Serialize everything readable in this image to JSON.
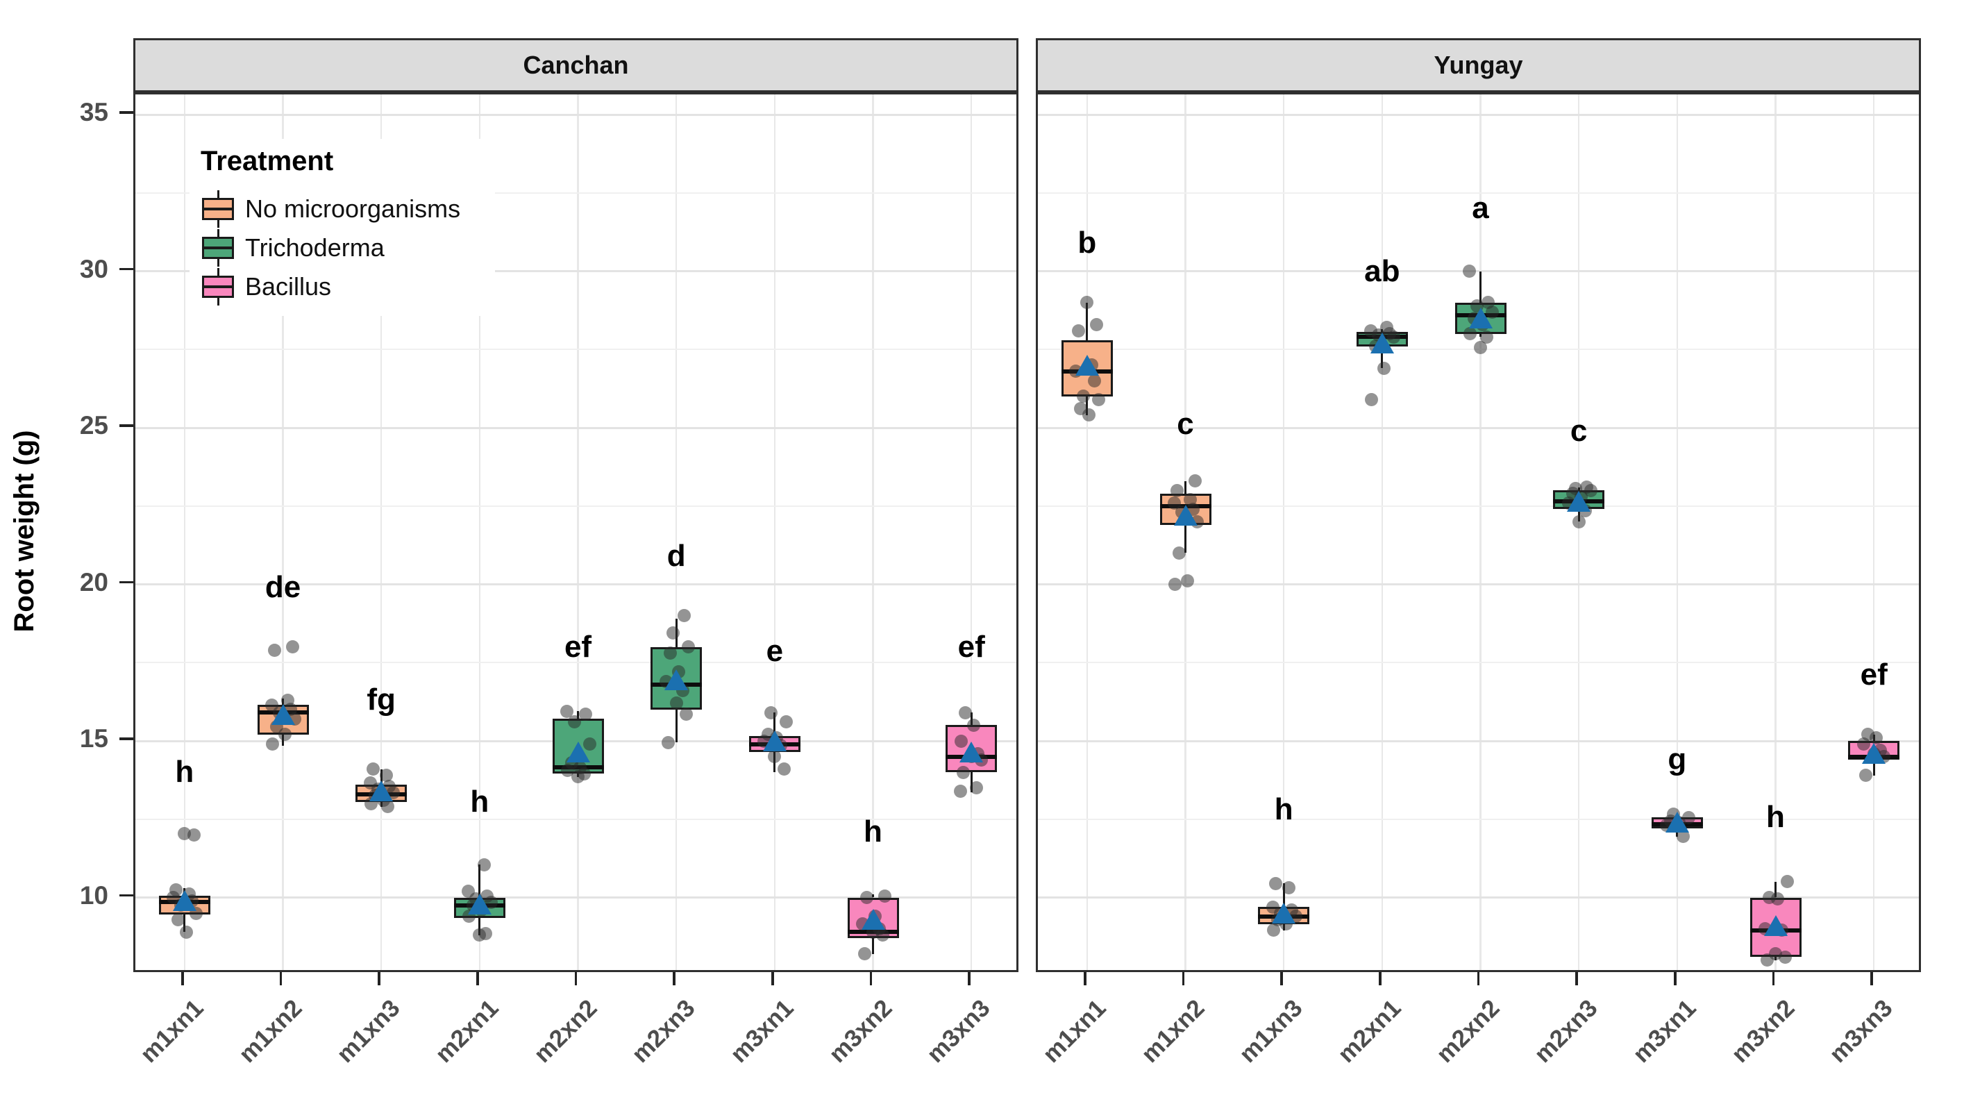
{
  "figure": {
    "y_axis": {
      "label": "Root weight (g)",
      "tick_labels": [
        "35",
        "30",
        "25",
        "20",
        "15",
        "10"
      ],
      "tick_values": [
        35,
        30,
        25,
        20,
        15,
        10
      ],
      "minor_values": [
        32.5,
        27.5,
        22.5,
        17.5,
        12.5
      ],
      "value_top": 35.64,
      "value_bottom": 7.55
    },
    "x_axis": {
      "categories": [
        "m1xn1",
        "m1xn2",
        "m1xn3",
        "m2xn1",
        "m2xn2",
        "m2xn3",
        "m3xn1",
        "m3xn2",
        "m3xn3"
      ]
    },
    "facets": [
      "Canchan",
      "Yungay"
    ],
    "legend": {
      "title": "Treatment",
      "items": [
        {
          "label": "No microorganisms",
          "color": "#F7B189"
        },
        {
          "label": "Trichoderma",
          "color": "#4DA679"
        },
        {
          "label": "Bacillus",
          "color": "#F987BD"
        }
      ]
    }
  },
  "colors": {
    "treatment_fills": {
      "No microorganisms": "#F7B189",
      "Trichoderma": "#4DA679",
      "Bacillus": "#F987BD"
    },
    "mean_marker": "#1B70B0",
    "jitter_point": "rgba(42,42,42,0.5)",
    "box_stroke": "#1a1a1a",
    "strip_fill": "#DCDCDC",
    "panel_border": "#2F2F2F",
    "gridline_major": "#E3E3E3",
    "gridline_minor": "#F0F0F0",
    "axis_text": "#4D4D4D"
  },
  "chart_data": {
    "type": "boxplot",
    "title": "",
    "xlabel": "",
    "ylabel": "Root weight (g)",
    "ylim": [
      7.55,
      35.64
    ],
    "grid": true,
    "legend_position": "top-left-inside",
    "facets": [
      {
        "name": "Canchan",
        "groups": [
          {
            "category": "m1xn1",
            "treatment": "No microorganisms",
            "letter": "h",
            "letter_y": 14.0,
            "whisker_low": 8.9,
            "q1": 9.45,
            "median": 9.85,
            "q3": 10.05,
            "whisker_high": 10.3,
            "mean": 9.9,
            "points": [
              12.05,
              12.0,
              10.25,
              10.1,
              10.0,
              9.9,
              9.75,
              9.5,
              9.3,
              8.9
            ]
          },
          {
            "category": "m1xn2",
            "treatment": "No microorganisms",
            "letter": "de",
            "letter_y": 19.9,
            "whisker_low": 14.85,
            "q1": 15.2,
            "median": 15.9,
            "q3": 16.15,
            "whisker_high": 16.35,
            "mean": 15.85,
            "points": [
              18.0,
              17.9,
              16.3,
              16.15,
              16.0,
              15.9,
              15.7,
              15.45,
              15.2,
              14.9
            ]
          },
          {
            "category": "m1xn3",
            "treatment": "No microorganisms",
            "letter": "fg",
            "letter_y": 16.3,
            "whisker_low": 12.9,
            "q1": 13.05,
            "median": 13.3,
            "q3": 13.6,
            "whisker_high": 14.1,
            "mean": 13.4,
            "points": [
              14.1,
              13.9,
              13.65,
              13.55,
              13.45,
              13.35,
              13.25,
              13.1,
              13.0,
              12.9
            ]
          },
          {
            "category": "m2xn1",
            "treatment": "Trichoderma",
            "letter": "h",
            "letter_y": 13.05,
            "whisker_low": 8.8,
            "q1": 9.35,
            "median": 9.75,
            "q3": 10.0,
            "whisker_high": 11.05,
            "mean": 9.8,
            "points": [
              11.05,
              10.2,
              10.05,
              9.95,
              9.85,
              9.75,
              9.6,
              9.4,
              8.85,
              8.8
            ]
          },
          {
            "category": "m2xn2",
            "treatment": "Trichoderma",
            "letter": "ef",
            "letter_y": 18.0,
            "whisker_low": 13.85,
            "q1": 13.95,
            "median": 14.15,
            "q3": 15.7,
            "whisker_high": 15.95,
            "mean": 14.65,
            "points": [
              15.95,
              15.85,
              15.6,
              14.9,
              14.3,
              14.15,
              14.05,
              13.95,
              13.85
            ]
          },
          {
            "category": "m2xn3",
            "treatment": "Trichoderma",
            "letter": "d",
            "letter_y": 20.9,
            "whisker_low": 14.95,
            "q1": 16.0,
            "median": 16.8,
            "q3": 18.0,
            "whisker_high": 18.9,
            "mean": 16.95,
            "points": [
              19.0,
              18.45,
              18.0,
              17.8,
              17.2,
              16.9,
              16.6,
              16.2,
              15.85,
              14.95
            ]
          },
          {
            "category": "m3xn1",
            "treatment": "Bacillus",
            "letter": "e",
            "letter_y": 17.85,
            "whisker_low": 14.0,
            "q1": 14.65,
            "median": 14.9,
            "q3": 15.15,
            "whisker_high": 15.9,
            "mean": 15.0,
            "points": [
              15.9,
              15.6,
              15.2,
              15.1,
              15.0,
              14.85,
              14.5,
              14.1
            ]
          },
          {
            "category": "m3xn2",
            "treatment": "Bacillus",
            "letter": "h",
            "letter_y": 12.1,
            "whisker_low": 8.2,
            "q1": 8.7,
            "median": 8.9,
            "q3": 10.0,
            "whisker_high": 10.1,
            "mean": 9.3,
            "points": [
              10.05,
              10.0,
              9.4,
              9.15,
              9.0,
              8.9,
              8.8,
              8.2
            ]
          },
          {
            "category": "m3xn3",
            "treatment": "Bacillus",
            "letter": "ef",
            "letter_y": 18.0,
            "whisker_low": 13.35,
            "q1": 14.0,
            "median": 14.5,
            "q3": 15.5,
            "whisker_high": 15.9,
            "mean": 14.65,
            "points": [
              15.9,
              15.5,
              15.0,
              14.6,
              14.5,
              14.4,
              14.0,
              13.5,
              13.4
            ]
          }
        ]
      },
      {
        "name": "Yungay",
        "groups": [
          {
            "category": "m1xn1",
            "treatment": "No microorganisms",
            "letter": "b",
            "letter_y": 30.9,
            "whisker_low": 25.4,
            "q1": 26.0,
            "median": 26.8,
            "q3": 27.8,
            "whisker_high": 29.0,
            "mean": 27.0,
            "points": [
              29.0,
              28.3,
              28.1,
              27.0,
              26.8,
              26.5,
              26.0,
              25.9,
              25.6,
              25.4
            ]
          },
          {
            "category": "m1xn2",
            "treatment": "No microorganisms",
            "letter": "c",
            "letter_y": 25.1,
            "whisker_low": 21.0,
            "q1": 21.9,
            "median": 22.5,
            "q3": 22.9,
            "whisker_high": 23.3,
            "mean": 22.2,
            "points": [
              23.3,
              23.0,
              22.7,
              22.6,
              22.4,
              22.3,
              22.0,
              21.0,
              20.1,
              20.0
            ]
          },
          {
            "category": "m1xn3",
            "treatment": "No microorganisms",
            "letter": "h",
            "letter_y": 12.8,
            "whisker_low": 8.95,
            "q1": 9.15,
            "median": 9.4,
            "q3": 9.7,
            "whisker_high": 10.45,
            "mean": 9.5,
            "points": [
              10.45,
              10.3,
              9.7,
              9.6,
              9.5,
              9.4,
              9.3,
              9.15,
              8.95
            ]
          },
          {
            "category": "m2xn1",
            "treatment": "Trichoderma",
            "letter": "ab",
            "letter_y": 30.0,
            "whisker_low": 26.9,
            "q1": 27.6,
            "median": 27.9,
            "q3": 28.05,
            "whisker_high": 28.15,
            "mean": 27.7,
            "points": [
              28.2,
              28.1,
              28.0,
              27.95,
              27.9,
              27.6,
              26.9,
              25.9
            ]
          },
          {
            "category": "m2xn2",
            "treatment": "Trichoderma",
            "letter": "a",
            "letter_y": 32.0,
            "whisker_low": 27.9,
            "q1": 28.0,
            "median": 28.6,
            "q3": 29.0,
            "whisker_high": 30.0,
            "mean": 28.5,
            "points": [
              30.0,
              29.0,
              28.9,
              28.7,
              28.5,
              28.3,
              28.0,
              27.9,
              27.55
            ]
          },
          {
            "category": "m2xn3",
            "treatment": "Trichoderma",
            "letter": "c",
            "letter_y": 24.9,
            "whisker_low": 22.0,
            "q1": 22.4,
            "median": 22.65,
            "q3": 23.0,
            "whisker_high": 23.1,
            "mean": 22.65,
            "points": [
              23.1,
              23.05,
              23.0,
              22.9,
              22.8,
              22.6,
              22.35,
              22.0
            ]
          },
          {
            "category": "m3xn1",
            "treatment": "Bacillus",
            "letter": "g",
            "letter_y": 14.4,
            "whisker_low": 11.95,
            "q1": 12.2,
            "median": 12.35,
            "q3": 12.55,
            "whisker_high": 12.65,
            "mean": 12.4,
            "points": [
              12.65,
              12.55,
              12.45,
              12.4,
              12.3,
              11.95
            ]
          },
          {
            "category": "m3xn2",
            "treatment": "Bacillus",
            "letter": "h",
            "letter_y": 12.55,
            "whisker_low": 8.0,
            "q1": 8.1,
            "median": 8.95,
            "q3": 10.0,
            "whisker_high": 10.5,
            "mean": 9.1,
            "points": [
              10.5,
              10.0,
              9.95,
              9.0,
              8.95,
              8.2,
              8.1,
              8.0
            ]
          },
          {
            "category": "m3xn3",
            "treatment": "Bacillus",
            "letter": "ef",
            "letter_y": 17.1,
            "whisker_low": 13.9,
            "q1": 14.4,
            "median": 14.5,
            "q3": 15.0,
            "whisker_high": 15.2,
            "mean": 14.6,
            "points": [
              15.2,
              15.1,
              14.9,
              14.7,
              14.6,
              14.5,
              13.9
            ]
          }
        ]
      }
    ]
  }
}
